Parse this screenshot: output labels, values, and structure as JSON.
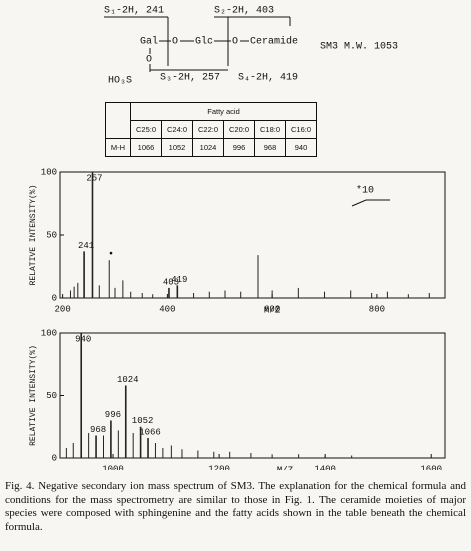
{
  "formula": {
    "s1": "S₁-2H, 241",
    "s2": "S₂-2H, 403",
    "gal": "Gal",
    "o1": "O",
    "glc": "Glc",
    "o2": "O",
    "ceramide": "Ceramide",
    "o3": "O",
    "ho3s": "HO₃S",
    "s3": "S₃-2H, 257",
    "s4": "S₄-2H, 419",
    "mw": "SM3 M.W. 1053"
  },
  "table": {
    "header": "Fatty acid",
    "columns": [
      "C25:0",
      "C24:0",
      "C22:0",
      "C20:0",
      "C18:0",
      "C16:0"
    ],
    "row_label": "M-H",
    "row": [
      1066,
      1052,
      1024,
      996,
      968,
      940
    ]
  },
  "chart_data": [
    {
      "type": "stem",
      "ylabel": "RELATIVE INTENSITY(%)",
      "xlabel": "M/Z",
      "x": [
        241,
        257,
        403,
        419
      ],
      "values": [
        37,
        100,
        8,
        10
      ],
      "color": "#222",
      "minor_peaks": {
        "x": [
          215,
          222,
          229,
          270,
          289,
          300,
          315,
          330,
          352,
          372,
          450,
          480,
          510,
          540,
          573,
          600,
          650,
          700,
          750,
          790,
          820,
          860,
          900
        ],
        "values": [
          6,
          9,
          12,
          10,
          30,
          8,
          14,
          5,
          4,
          3,
          4,
          5,
          6,
          5,
          34,
          6,
          8,
          5,
          6,
          4,
          5,
          3,
          4
        ]
      },
      "annotations": [
        "*10",
        "•"
      ],
      "xlim": [
        195,
        930
      ],
      "ylim": [
        0,
        100
      ],
      "xticks": [
        200,
        400,
        600,
        800
      ],
      "yticks": [
        0,
        50,
        100
      ]
    },
    {
      "type": "stem",
      "ylabel": "RELATIVE INTENSITY(%)",
      "xlabel": "M/Z",
      "x": [
        940,
        968,
        996,
        1024,
        1052,
        1066
      ],
      "values": [
        100,
        18,
        30,
        58,
        25,
        16
      ],
      "color": "#222",
      "minor_peaks": {
        "x": [
          912,
          925,
          954,
          982,
          1010,
          1038,
          1080,
          1094,
          1110,
          1130,
          1160,
          1190,
          1220,
          1260,
          1300,
          1350,
          1400,
          1450
        ],
        "values": [
          8,
          12,
          20,
          18,
          22,
          20,
          12,
          8,
          10,
          7,
          6,
          5,
          5,
          4,
          3,
          3,
          2,
          2
        ]
      },
      "annotations": [],
      "xlim": [
        900,
        1626
      ],
      "ylim": [
        0,
        100
      ],
      "xticks": [
        1000,
        1200,
        1400,
        1600
      ],
      "yticks": [
        0,
        50,
        100
      ]
    }
  ],
  "caption": "Fig. 4.  Negative secondary ion mass spectrum of SM3.  The explanation for the chemical formula and conditions for the mass spectrometry are similar to those in Fig. 1.  The ceramide moieties of major species were composed with sphingenine and the fatty acids shown in the table beneath the chemical formula."
}
